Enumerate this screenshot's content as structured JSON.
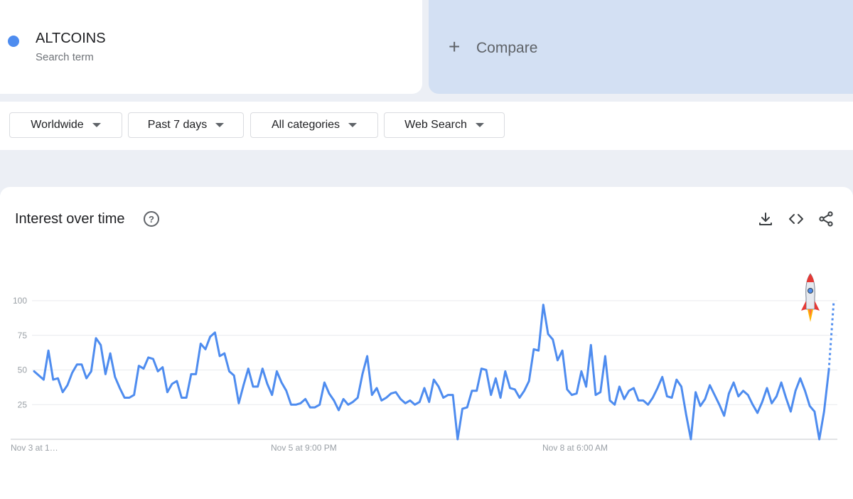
{
  "search_term": {
    "name": "ALTCOINS",
    "subtitle": "Search term",
    "color": "#4e8cef"
  },
  "compare": {
    "plus": "+",
    "label": "Compare"
  },
  "filters": [
    "Worldwide",
    "Past 7 days",
    "All categories",
    "Web Search"
  ],
  "chart_section": {
    "title": "Interest over time",
    "help_icon": "?",
    "tools": [
      "download-icon",
      "embed-icon",
      "share-icon"
    ]
  },
  "chart_data": {
    "type": "line",
    "title": "Interest over time",
    "xlabel": "",
    "ylabel": "",
    "ylim": [
      0,
      100
    ],
    "yticks": [
      25,
      50,
      75,
      100
    ],
    "xtick_labels": [
      "Nov 3 at 1…",
      "Nov 5 at 9:00 PM",
      "Nov 8 at 6:00 AM"
    ],
    "grid": true,
    "line_color": "#4e8cef",
    "series": [
      {
        "name": "ALTCOINS",
        "values": [
          49,
          46,
          43,
          64,
          43,
          44,
          34,
          39,
          48,
          54,
          54,
          44,
          49,
          73,
          68,
          47,
          62,
          45,
          37,
          30,
          30,
          32,
          53,
          51,
          59,
          58,
          49,
          52,
          34,
          40,
          42,
          30,
          30,
          47,
          47,
          69,
          65,
          74,
          77,
          60,
          62,
          49,
          46,
          26,
          39,
          51,
          38,
          38,
          51,
          40,
          32,
          49,
          41,
          35,
          25,
          25,
          26,
          29,
          23,
          23,
          25,
          41,
          33,
          28,
          21,
          29,
          25,
          27,
          30,
          47,
          60,
          32,
          37,
          28,
          30,
          33,
          34,
          29,
          26,
          28,
          25,
          27,
          37,
          27,
          43,
          38,
          30,
          32,
          32,
          0,
          22,
          23,
          35,
          35,
          51,
          50,
          32,
          44,
          30,
          49,
          37,
          36,
          30,
          35,
          42,
          65,
          64,
          97,
          76,
          72,
          57,
          64,
          36,
          32,
          33,
          49,
          38,
          68,
          32,
          34,
          60,
          28,
          25,
          38,
          29,
          35,
          37,
          28,
          28,
          25,
          30,
          37,
          45,
          31,
          30,
          43,
          38,
          18,
          0,
          34,
          24,
          29,
          39,
          32,
          25,
          17,
          33,
          41,
          31,
          35,
          32,
          25,
          19,
          27,
          37,
          26,
          31,
          41,
          30,
          20,
          35,
          44,
          35,
          24,
          20,
          0,
          20,
          50
        ]
      }
    ],
    "partial_tail": [
      50,
      100
    ],
    "annotation": "rocket-icon"
  }
}
